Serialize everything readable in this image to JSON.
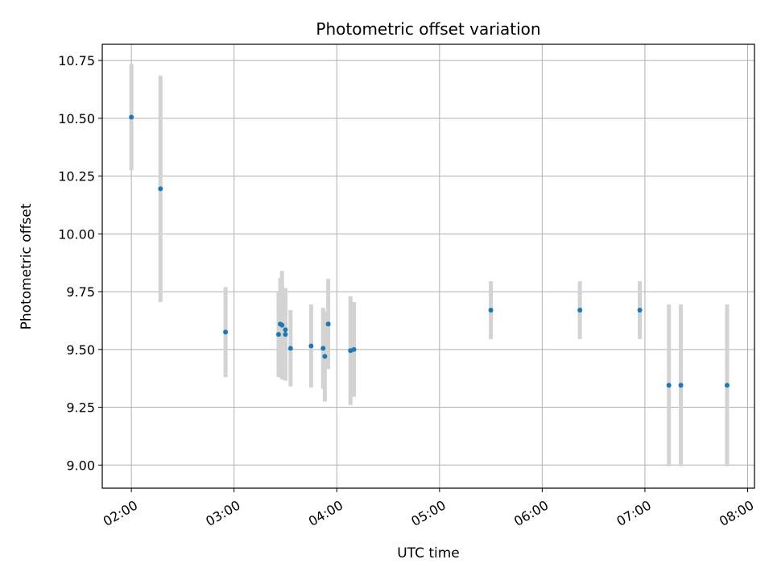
{
  "chart_data": {
    "type": "scatter",
    "title": "Photometric offset variation",
    "xlabel": "UTC time",
    "ylabel": "Photometric offset",
    "x_type": "time",
    "xlim": [
      "01:43",
      "08:04"
    ],
    "ylim": [
      8.9,
      10.82
    ],
    "x_ticks": [
      "02:00",
      "03:00",
      "04:00",
      "05:00",
      "06:00",
      "07:00",
      "08:00"
    ],
    "y_ticks": [
      "9.00",
      "9.25",
      "9.50",
      "9.75",
      "10.00",
      "10.25",
      "10.50",
      "10.75"
    ],
    "grid": true,
    "point_color": "#1f77b4",
    "errorbar_color": "#d3d3d3",
    "points": [
      {
        "x": "02:00",
        "y": 10.505,
        "err": 0.23
      },
      {
        "x": "02:17",
        "y": 10.195,
        "err": 0.49
      },
      {
        "x": "02:55",
        "y": 9.575,
        "err": 0.195
      },
      {
        "x": "03:26",
        "y": 9.565,
        "err": 0.185
      },
      {
        "x": "03:27",
        "y": 9.61,
        "err": 0.2
      },
      {
        "x": "03:28",
        "y": 9.605,
        "err": 0.235
      },
      {
        "x": "03:30",
        "y": 9.585,
        "err": 0.18
      },
      {
        "x": "03:30",
        "y": 9.565,
        "err": 0.2
      },
      {
        "x": "03:33",
        "y": 9.505,
        "err": 0.165
      },
      {
        "x": "03:45",
        "y": 9.515,
        "err": 0.18
      },
      {
        "x": "03:52",
        "y": 9.505,
        "err": 0.175
      },
      {
        "x": "03:53",
        "y": 9.47,
        "err": 0.195
      },
      {
        "x": "03:55",
        "y": 9.61,
        "err": 0.195
      },
      {
        "x": "04:08",
        "y": 9.495,
        "err": 0.235
      },
      {
        "x": "04:10",
        "y": 9.5,
        "err": 0.205
      },
      {
        "x": "05:30",
        "y": 9.67,
        "err": 0.125
      },
      {
        "x": "06:22",
        "y": 9.67,
        "err": 0.125
      },
      {
        "x": "06:57",
        "y": 9.67,
        "err": 0.125
      },
      {
        "x": "07:14",
        "y": 9.345,
        "err": 0.35
      },
      {
        "x": "07:21",
        "y": 9.345,
        "err": 0.35
      },
      {
        "x": "07:48",
        "y": 9.345,
        "err": 0.35
      }
    ]
  }
}
